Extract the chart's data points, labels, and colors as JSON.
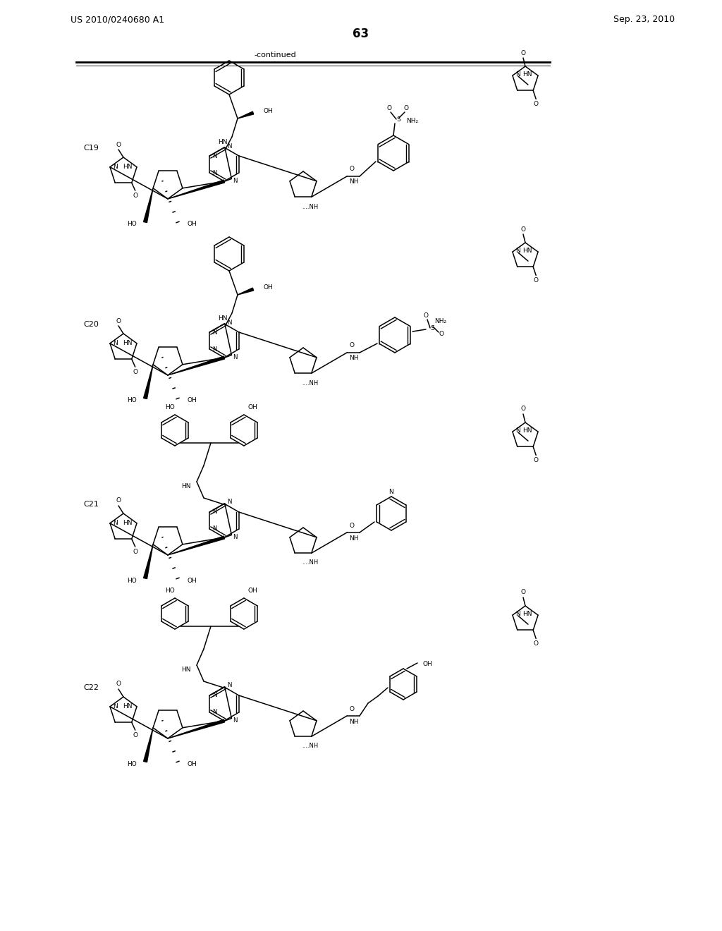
{
  "patent_number": "US 2010/0240680 A1",
  "patent_date": "Sep. 23, 2010",
  "page_number": "63",
  "continued_label": "-continued",
  "compounds": [
    "C19",
    "C20",
    "C21",
    "C22"
  ],
  "bg_color": "#ffffff",
  "text_color": "#000000"
}
